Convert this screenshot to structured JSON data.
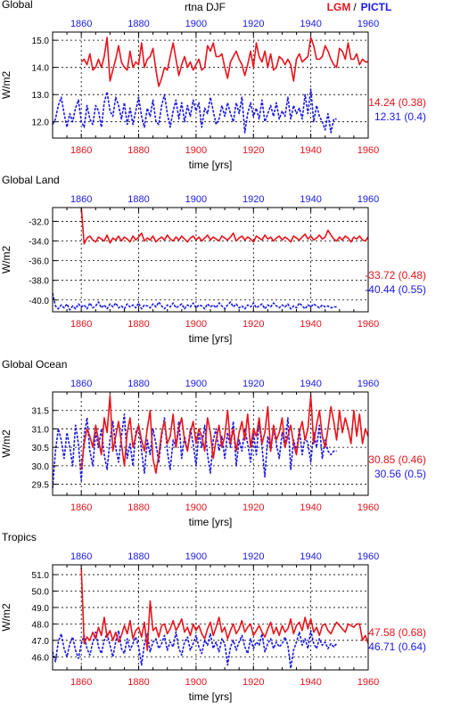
{
  "header": {
    "variable": "rtna DJF",
    "lgm_label": "LGM",
    "separator": "/",
    "pictl_label": "PICTL"
  },
  "colors": {
    "lgm": "#e8141b",
    "pictl": "#1a1ae6",
    "axis": "#000000"
  },
  "chart_data": [
    {
      "type": "line",
      "title": "Global",
      "ylabel": "W/m2",
      "xlabel": "time [yrs]",
      "xlim": [
        1850,
        1960
      ],
      "ylim": [
        11.4,
        15.3
      ],
      "yticks": [
        12.0,
        13.0,
        14.0,
        15.0
      ],
      "ytick_labels": [
        "12.0",
        "13.0",
        "14.0",
        "15.0"
      ],
      "xticks": [
        1860,
        1880,
        1900,
        1920,
        1940,
        1960
      ],
      "xtick_labels": [
        "1860",
        "1880",
        "1900",
        "1920",
        "1940",
        "1960"
      ],
      "grid": true,
      "series": [
        {
          "name": "LGM",
          "stat": "14.24 (0.38)",
          "x_start": 1860,
          "values": [
            14.2,
            14.3,
            14.1,
            14.5,
            13.9,
            14.0,
            14.3,
            14.0,
            14.4,
            15.1,
            13.5,
            13.9,
            14.3,
            14.8,
            14.2,
            14.0,
            13.9,
            14.6,
            14.0,
            14.2,
            14.1,
            14.9,
            14.0,
            14.3,
            14.4,
            14.7,
            13.9,
            13.3,
            13.6,
            14.0,
            13.9,
            14.4,
            14.9,
            14.3,
            13.7,
            14.1,
            14.4,
            14.0,
            14.2,
            13.9,
            14.1,
            14.3,
            13.9,
            14.0,
            14.8,
            14.6,
            14.9,
            14.4,
            14.4,
            14.5,
            14.0,
            13.6,
            14.2,
            14.4,
            14.6,
            14.3,
            14.1,
            13.7,
            14.1,
            14.6,
            14.0,
            14.9,
            14.4,
            14.2,
            14.6,
            14.0,
            14.5,
            13.9,
            14.0,
            14.4,
            14.3,
            14.1,
            14.3,
            14.1,
            13.5,
            14.3,
            14.5,
            14.2,
            14.3,
            14.4,
            15.1,
            14.8,
            14.3,
            14.3,
            14.4,
            14.8,
            14.6,
            14.3,
            14.1,
            14.0,
            14.7,
            14.6,
            14.3,
            14.9,
            14.3,
            14.3,
            14.5,
            14.1,
            14.3,
            14.2,
            14.2
          ]
        },
        {
          "name": "PICTL",
          "stat": "12.31 (0.4)",
          "x_start": 1850,
          "values": [
            11.9,
            12.1,
            12.6,
            12.9,
            12.3,
            11.8,
            12.3,
            12.0,
            12.5,
            12.8,
            12.0,
            11.8,
            12.6,
            12.1,
            11.9,
            12.6,
            12.4,
            11.8,
            12.7,
            13.1,
            12.4,
            12.2,
            12.9,
            12.6,
            12.1,
            12.7,
            11.9,
            12.5,
            11.9,
            12.4,
            12.9,
            12.2,
            11.8,
            12.5,
            12.2,
            12.8,
            12.0,
            11.9,
            12.6,
            13.0,
            12.3,
            11.8,
            12.4,
            12.8,
            12.1,
            12.7,
            12.0,
            12.6,
            12.2,
            12.8,
            12.4,
            12.7,
            11.8,
            12.5,
            12.3,
            12.9,
            12.4,
            11.9,
            12.1,
            12.6,
            12.2,
            12.7,
            12.3,
            12.0,
            12.7,
            12.3,
            12.9,
            11.6,
            12.3,
            12.7,
            12.2,
            12.5,
            12.1,
            12.8,
            12.0,
            12.3,
            12.6,
            12.2,
            12.7,
            12.1,
            12.4,
            12.2,
            12.9,
            12.1,
            12.6,
            12.3,
            12.5,
            12.1,
            13.0,
            12.3,
            13.2,
            12.0,
            12.6,
            12.2,
            12.0,
            11.7,
            12.3,
            11.6,
            12.1,
            12.1
          ]
        }
      ]
    },
    {
      "type": "line",
      "title": "Global Land",
      "ylabel": "W/m2",
      "xlabel": "time [yrs]",
      "xlim": [
        1850,
        1960
      ],
      "ylim": [
        -41.2,
        -30.6
      ],
      "yticks": [
        -40.0,
        -38.0,
        -36.0,
        -34.0,
        -32.0
      ],
      "ytick_labels": [
        "-40.0",
        "-38.0",
        "-36.0",
        "-34.0",
        "-32.0"
      ],
      "xticks": [
        1860,
        1880,
        1900,
        1920,
        1940,
        1960
      ],
      "xtick_labels": [
        "1860",
        "1880",
        "1900",
        "1920",
        "1940",
        "1960"
      ],
      "grid": true,
      "series": [
        {
          "name": "LGM",
          "stat": "-33.72 (0.48)",
          "x_start": 1860,
          "values": [
            -30.6,
            -34.3,
            -33.7,
            -33.5,
            -33.9,
            -34.1,
            -33.6,
            -33.8,
            -34.0,
            -33.4,
            -34.2,
            -33.7,
            -33.9,
            -33.5,
            -34.0,
            -33.6,
            -33.8,
            -34.1,
            -33.5,
            -33.9,
            -33.6,
            -33.2,
            -34.0,
            -33.7,
            -33.9,
            -33.5,
            -34.1,
            -33.8,
            -33.6,
            -33.9,
            -33.4,
            -33.8,
            -34.0,
            -33.6,
            -33.9,
            -33.5,
            -33.8,
            -34.1,
            -33.7,
            -33.5,
            -33.9,
            -33.6,
            -34.0,
            -33.7,
            -33.4,
            -33.9,
            -33.6,
            -33.8,
            -34.0,
            -33.5,
            -33.7,
            -33.9,
            -33.6,
            -33.2,
            -34.0,
            -33.7,
            -33.5,
            -33.9,
            -33.6,
            -33.8,
            -34.1,
            -33.5,
            -33.7,
            -33.9,
            -33.4,
            -33.8,
            -33.6,
            -34.0,
            -33.7,
            -33.5,
            -33.9,
            -33.6,
            -33.8,
            -34.1,
            -33.5,
            -33.7,
            -33.9,
            -33.6,
            -33.3,
            -33.8,
            -33.5,
            -33.9,
            -33.7,
            -33.4,
            -33.8,
            -33.6,
            -32.9,
            -33.4,
            -33.8,
            -34.0,
            -33.6,
            -33.9,
            -33.5,
            -33.7,
            -34.1,
            -33.6,
            -33.8,
            -33.5,
            -33.9,
            -34.0,
            -33.6
          ]
        },
        {
          "name": "PICTL",
          "stat": "-40.44 (0.55)",
          "x_start": 1850,
          "values": [
            -39.3,
            -40.6,
            -40.9,
            -40.5,
            -40.8,
            -40.4,
            -41.0,
            -40.6,
            -40.9,
            -40.4,
            -40.7,
            -40.5,
            -40.9,
            -40.3,
            -40.8,
            -40.6,
            -40.2,
            -40.8,
            -40.5,
            -40.9,
            -40.4,
            -40.7,
            -40.3,
            -40.8,
            -40.6,
            -40.9,
            -40.4,
            -40.7,
            -40.5,
            -40.8,
            -40.3,
            -40.9,
            -40.5,
            -40.6,
            -40.8,
            -40.4,
            -40.7,
            -40.2,
            -40.6,
            -40.9,
            -40.5,
            -40.7,
            -40.3,
            -40.8,
            -40.6,
            -40.4,
            -40.9,
            -40.5,
            -40.7,
            -40.3,
            -40.8,
            -40.5,
            -40.6,
            -40.9,
            -40.4,
            -40.7,
            -40.5,
            -40.8,
            -40.3,
            -40.6,
            -40.9,
            -40.5,
            -40.2,
            -40.7,
            -40.4,
            -40.8,
            -40.6,
            -40.9,
            -40.5,
            -40.7,
            -40.3,
            -40.8,
            -40.6,
            -40.4,
            -40.9,
            -40.5,
            -40.7,
            -40.3,
            -40.6,
            -40.8,
            -40.5,
            -40.7,
            -40.4,
            -40.9,
            -40.6,
            -40.8,
            -40.3,
            -40.6,
            -40.9,
            -40.5,
            -40.7,
            -40.4,
            -40.6,
            -40.8,
            -40.5,
            -40.7,
            -40.6,
            -40.8,
            -40.7,
            -40.7
          ]
        }
      ]
    },
    {
      "type": "line",
      "title": "Global Ocean",
      "ylabel": "W/m2",
      "xlabel": "time [yrs]",
      "xlim": [
        1850,
        1960
      ],
      "ylim": [
        29.2,
        32.0
      ],
      "yticks": [
        29.5,
        30.0,
        30.5,
        31.0,
        31.5
      ],
      "ytick_labels": [
        "29.5",
        "30.0",
        "30.5",
        "31.0",
        "31.5"
      ],
      "xticks": [
        1860,
        1880,
        1900,
        1920,
        1940,
        1960
      ],
      "xtick_labels": [
        "1860",
        "1880",
        "1900",
        "1920",
        "1940",
        "1960"
      ],
      "grid": true,
      "series": [
        {
          "name": "LGM",
          "stat": "30.85 (0.46)",
          "x_start": 1860,
          "values": [
            29.9,
            30.6,
            31.0,
            30.8,
            30.5,
            31.1,
            30.7,
            30.3,
            31.3,
            30.9,
            31.9,
            30.4,
            30.8,
            31.2,
            30.6,
            30.0,
            30.9,
            31.3,
            30.5,
            30.8,
            31.1,
            30.7,
            30.4,
            31.0,
            31.5,
            30.2,
            29.8,
            30.3,
            30.9,
            31.2,
            30.6,
            30.8,
            31.4,
            30.5,
            31.0,
            31.3,
            30.7,
            30.4,
            30.9,
            31.2,
            30.6,
            31.0,
            30.8,
            30.4,
            31.3,
            30.9,
            30.2,
            30.7,
            31.1,
            30.5,
            30.8,
            31.5,
            30.6,
            31.0,
            30.4,
            30.9,
            31.2,
            30.7,
            31.4,
            30.5,
            31.0,
            30.8,
            31.3,
            30.6,
            30.9,
            31.6,
            30.4,
            31.1,
            30.7,
            30.9,
            31.3,
            30.5,
            30.8,
            31.1,
            30.6,
            30.3,
            30.9,
            31.2,
            30.7,
            31.0,
            31.9,
            30.6,
            31.1,
            31.5,
            30.8,
            30.5,
            31.0,
            31.6,
            31.2,
            30.7,
            31.5,
            30.9,
            31.3,
            31.0,
            30.6,
            31.5,
            30.8,
            31.4,
            30.6,
            31.0,
            30.8
          ]
        },
        {
          "name": "PICTL",
          "stat": "30.56 (0.5)",
          "x_start": 1850,
          "values": [
            29.4,
            30.4,
            31.0,
            30.7,
            30.2,
            30.9,
            30.5,
            30.0,
            31.1,
            30.6,
            29.6,
            30.8,
            31.3,
            30.4,
            30.0,
            30.9,
            30.5,
            31.0,
            30.3,
            29.9,
            30.7,
            31.2,
            30.5,
            30.1,
            30.8,
            31.4,
            30.2,
            30.6,
            30.0,
            30.9,
            31.1,
            30.4,
            29.8,
            30.7,
            30.3,
            31.0,
            30.6,
            30.1,
            30.8,
            31.3,
            30.4,
            29.9,
            30.7,
            30.5,
            31.2,
            30.2,
            30.8,
            30.4,
            31.0,
            30.6,
            30.0,
            30.9,
            30.5,
            31.1,
            30.3,
            29.8,
            30.7,
            31.0,
            30.4,
            30.8,
            30.2,
            30.9,
            30.5,
            31.2,
            30.0,
            30.7,
            30.4,
            31.0,
            30.6,
            30.1,
            30.9,
            30.3,
            31.2,
            30.5,
            29.7,
            30.8,
            30.4,
            31.0,
            30.6,
            30.2,
            30.9,
            30.5,
            31.3,
            29.9,
            30.7,
            30.4,
            31.0,
            30.3,
            30.8,
            30.6,
            30.1,
            30.9,
            30.5,
            31.1,
            30.2,
            30.7,
            30.4,
            30.3,
            30.4,
            30.4
          ]
        }
      ]
    },
    {
      "type": "line",
      "title": "Tropics",
      "ylabel": "W/m2",
      "xlabel": "time [yrs]",
      "xlim": [
        1850,
        1960
      ],
      "ylim": [
        45.2,
        51.6
      ],
      "yticks": [
        46.0,
        47.0,
        48.0,
        49.0,
        50.0,
        51.0
      ],
      "ytick_labels": [
        "46.0",
        "47.0",
        "48.0",
        "49.0",
        "50.0",
        "51.0"
      ],
      "xticks": [
        1860,
        1880,
        1900,
        1920,
        1940,
        1960
      ],
      "xtick_labels": [
        "1860",
        "1880",
        "1900",
        "1920",
        "1940",
        "1960"
      ],
      "grid": true,
      "series": [
        {
          "name": "LGM",
          "stat": "47.58 (0.68)",
          "x_start": 1860,
          "values": [
            51.4,
            46.8,
            47.2,
            47.0,
            47.5,
            47.1,
            47.8,
            47.3,
            48.4,
            47.2,
            47.6,
            47.0,
            47.5,
            46.9,
            47.3,
            47.9,
            47.4,
            48.2,
            47.1,
            47.6,
            47.8,
            47.2,
            48.1,
            46.4,
            49.4,
            47.6,
            47.8,
            47.2,
            47.9,
            48.0,
            47.4,
            47.7,
            48.2,
            47.6,
            47.9,
            48.3,
            47.5,
            47.8,
            47.3,
            48.0,
            47.6,
            47.9,
            47.4,
            47.1,
            47.7,
            48.1,
            47.3,
            47.8,
            48.4,
            47.5,
            47.8,
            47.1,
            47.6,
            48.0,
            47.4,
            47.7,
            48.2,
            47.5,
            47.8,
            48.0,
            47.3,
            47.6,
            47.9,
            47.5,
            47.2,
            47.7,
            48.1,
            47.4,
            47.8,
            47.3,
            47.9,
            47.5,
            47.7,
            48.3,
            47.4,
            47.9,
            48.1,
            47.6,
            48.4,
            47.7,
            48.3,
            47.5,
            47.8,
            47.3,
            47.9,
            48.0,
            47.6,
            47.4,
            47.8,
            48.1,
            47.9,
            47.7,
            47.5,
            48.0,
            47.9,
            47.8,
            48.0,
            48.0,
            47.0,
            47.3,
            46.8
          ]
        },
        {
          "name": "PICTL",
          "stat": "46.71 (0.64)",
          "x_start": 1850,
          "values": [
            46.3,
            45.7,
            46.9,
            47.4,
            46.5,
            46.0,
            46.8,
            47.2,
            46.4,
            45.9,
            46.8,
            47.3,
            46.5,
            46.1,
            46.9,
            47.5,
            46.6,
            46.2,
            47.0,
            47.4,
            46.7,
            46.0,
            46.9,
            47.6,
            46.5,
            46.2,
            47.1,
            46.4,
            46.8,
            47.2,
            46.6,
            45.5,
            46.8,
            47.4,
            46.3,
            46.9,
            47.1,
            46.5,
            46.8,
            47.3,
            46.4,
            46.9,
            46.6,
            47.5,
            46.5,
            46.1,
            46.9,
            47.2,
            46.4,
            46.8,
            47.3,
            46.6,
            46.2,
            47.0,
            46.7,
            47.4,
            46.5,
            46.9,
            46.3,
            47.1,
            46.8,
            45.5,
            46.6,
            47.0,
            46.4,
            46.9,
            47.3,
            46.6,
            46.2,
            47.1,
            46.5,
            46.9,
            46.7,
            47.4,
            46.3,
            46.8,
            47.1,
            46.5,
            46.9,
            46.6,
            46.8,
            47.2,
            46.7,
            45.3,
            46.4,
            46.9,
            47.5,
            46.7,
            47.1,
            46.5,
            47.6,
            46.8,
            46.5,
            47.1,
            46.7,
            46.9,
            46.5,
            46.8,
            46.6,
            46.8
          ]
        }
      ]
    }
  ]
}
